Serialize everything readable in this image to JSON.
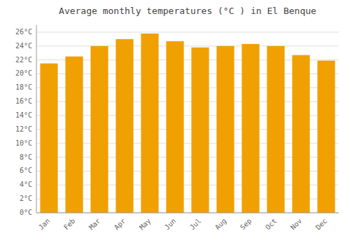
{
  "chart_data": {
    "type": "bar",
    "title": "Average monthly temperatures (°C ) in El Benque",
    "categories": [
      "Jan",
      "Feb",
      "Mar",
      "Apr",
      "May",
      "Jun",
      "Jul",
      "Aug",
      "Sep",
      "Oct",
      "Nov",
      "Dec"
    ],
    "values": [
      21.5,
      22.5,
      24.0,
      25.0,
      25.8,
      24.7,
      23.8,
      24.0,
      24.3,
      24.0,
      22.7,
      21.9
    ],
    "color": "#F0A000",
    "ylim": [
      0,
      27
    ],
    "yticks": [
      {
        "value": 0,
        "label": "0°C"
      },
      {
        "value": 2,
        "label": "2°C"
      },
      {
        "value": 4,
        "label": "4°C"
      },
      {
        "value": 6,
        "label": "6°C"
      },
      {
        "value": 8,
        "label": "8°C"
      },
      {
        "value": 10,
        "label": "10°C"
      },
      {
        "value": 12,
        "label": "12°C"
      },
      {
        "value": 14,
        "label": "14°C"
      },
      {
        "value": 16,
        "label": "16°C"
      },
      {
        "value": 18,
        "label": "18°C"
      },
      {
        "value": 20,
        "label": "20°C"
      },
      {
        "value": 22,
        "label": "22°C"
      },
      {
        "value": 24,
        "label": "24°C"
      },
      {
        "value": 26,
        "label": "26°C"
      }
    ],
    "grid": true
  }
}
